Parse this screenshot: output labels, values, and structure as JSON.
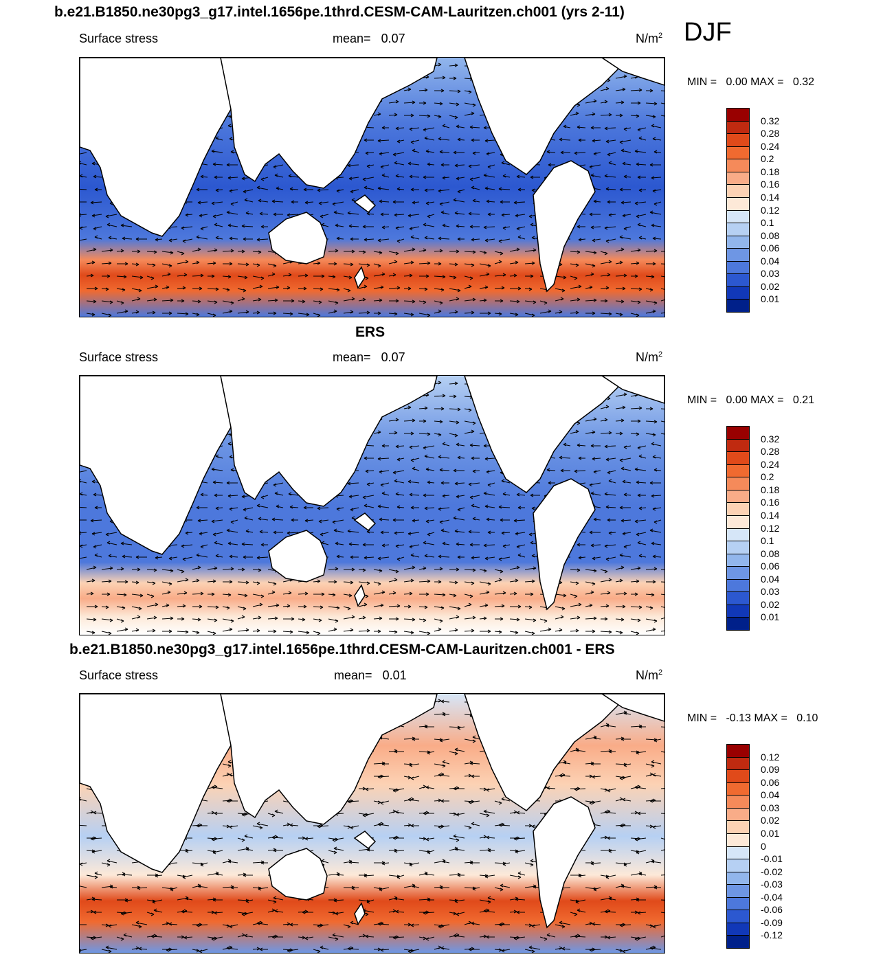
{
  "season": "DJF",
  "panels": [
    {
      "title": "b.e21.B1850.ne30pg3_g17.intel.1656pe.1thrd.CESM-CAM-Lauritzen.ch001 (yrs 2-11)",
      "variable": "Surface stress",
      "mean_label": "mean=",
      "mean_value": "0.07",
      "units": "N/m",
      "units_exp": "2",
      "min_label": "MIN =",
      "min_value": "0.00",
      "max_label": "MAX =",
      "max_value": "0.32"
    },
    {
      "title": "ERS",
      "variable": "Surface stress",
      "mean_label": "mean=",
      "mean_value": "0.07",
      "units": "N/m",
      "units_exp": "2",
      "min_label": "MIN =",
      "min_value": "0.00",
      "max_label": "MAX =",
      "max_value": "0.21"
    },
    {
      "title": "b.e21.B1850.ne30pg3_g17.intel.1656pe.1thrd.CESM-CAM-Lauritzen.ch001 - ERS",
      "variable": "Surface stress",
      "mean_label": "mean=",
      "mean_value": "0.01",
      "units": "N/m",
      "units_exp": "2",
      "min_label": "MIN =",
      "min_value": "-0.13",
      "max_label": "MAX =",
      "max_value": "0.10"
    }
  ],
  "chart_data": [
    {
      "type": "heatmap",
      "title": "b.e21.B1850.ne30pg3_g17.intel.1656pe.1thrd.CESM-CAM-Lauritzen.ch001 (yrs 2-11)",
      "subtitle": "Surface stress",
      "mean": 0.07,
      "min": 0.0,
      "max": 0.32,
      "units": "N/m^2",
      "overlay": "wind stress vectors",
      "colorbar": {
        "labels": [
          "0.32",
          "0.28",
          "0.24",
          "0.2",
          "0.18",
          "0.16",
          "0.14",
          "0.12",
          "0.1",
          "0.08",
          "0.06",
          "0.04",
          "0.03",
          "0.02",
          "0.01"
        ],
        "colors": [
          "#990000",
          "#c02a10",
          "#e04a1a",
          "#f06a30",
          "#f58a5a",
          "#f9ac88",
          "#fcd2b4",
          "#fde9d8",
          "#d6e6f8",
          "#b6d0f3",
          "#92b6ec",
          "#6e96e4",
          "#4d78dc",
          "#2c58d0",
          "#1138b8",
          "#00208a"
        ]
      }
    },
    {
      "type": "heatmap",
      "title": "ERS",
      "subtitle": "Surface stress",
      "mean": 0.07,
      "min": 0.0,
      "max": 0.21,
      "units": "N/m^2",
      "overlay": "wind stress vectors",
      "colorbar": {
        "labels": [
          "0.32",
          "0.28",
          "0.24",
          "0.2",
          "0.18",
          "0.16",
          "0.14",
          "0.12",
          "0.1",
          "0.08",
          "0.06",
          "0.04",
          "0.03",
          "0.02",
          "0.01"
        ],
        "colors": [
          "#990000",
          "#c02a10",
          "#e04a1a",
          "#f06a30",
          "#f58a5a",
          "#f9ac88",
          "#fcd2b4",
          "#fde9d8",
          "#d6e6f8",
          "#b6d0f3",
          "#92b6ec",
          "#6e96e4",
          "#4d78dc",
          "#2c58d0",
          "#1138b8",
          "#00208a"
        ]
      }
    },
    {
      "type": "heatmap",
      "title": "b.e21.B1850.ne30pg3_g17.intel.1656pe.1thrd.CESM-CAM-Lauritzen.ch001 - ERS",
      "subtitle": "Surface stress",
      "mean": 0.01,
      "min": -0.13,
      "max": 0.1,
      "units": "N/m^2",
      "overlay": "wind stress difference vectors",
      "colorbar": {
        "labels": [
          "0.12",
          "0.09",
          "0.06",
          "0.04",
          "0.03",
          "0.02",
          "0.01",
          "0",
          "-0.01",
          "-0.02",
          "-0.03",
          "-0.04",
          "-0.06",
          "-0.09",
          "-0.12"
        ],
        "colors": [
          "#990000",
          "#c02a10",
          "#e04a1a",
          "#f06a30",
          "#f58a5a",
          "#f9ac88",
          "#fcd2b4",
          "#fde9d8",
          "#d6e6f8",
          "#b6d0f3",
          "#92b6ec",
          "#6e96e4",
          "#4d78dc",
          "#2c58d0",
          "#1138b8",
          "#00208a"
        ]
      }
    }
  ]
}
